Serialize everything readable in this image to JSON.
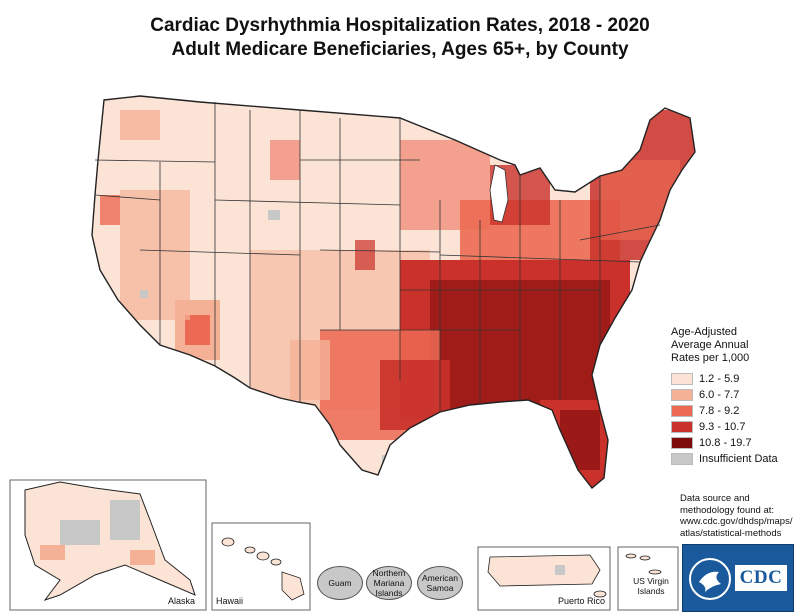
{
  "title": {
    "line1": "Cardiac Dysrhythmia Hospitalization Rates, 2018 - 2020",
    "line2": "Adult Medicare Beneficiaries, Ages 65+, by County"
  },
  "legend": {
    "title_line1": "Age-Adjusted",
    "title_line2": "Average Annual",
    "title_line3": "Rates per 1,000",
    "items": [
      {
        "label": "1.2 - 5.9",
        "color": "#fbe3d6"
      },
      {
        "label": "6.0 - 7.7",
        "color": "#f4b196"
      },
      {
        "label": "7.8 - 9.2",
        "color": "#ec6a53"
      },
      {
        "label": "9.3 - 10.7",
        "color": "#c9312a"
      },
      {
        "label": "10.8 - 19.7",
        "color": "#7d0b0b"
      },
      {
        "label": "Insufficient Data",
        "color": "#c8c8c8"
      }
    ]
  },
  "source": {
    "line1": "Data source and",
    "line2": "methodology found at:",
    "line3": "www.cdc.gov/dhdsp/maps/",
    "line4": "atlas/statistical-methods"
  },
  "insets": {
    "alaska": "Alaska",
    "hawaii": "Hawaii",
    "guam": "Guam",
    "northern_mariana_1": "Northern",
    "northern_mariana_2": "Mariana",
    "northern_mariana_3": "Islands",
    "american_samoa_1": "American",
    "american_samoa_2": "Samoa",
    "puerto_rico": "Puerto Rico",
    "us_virgin_1": "US Virgin",
    "us_virgin_2": "Islands"
  },
  "logo": {
    "text": "CDC"
  }
}
